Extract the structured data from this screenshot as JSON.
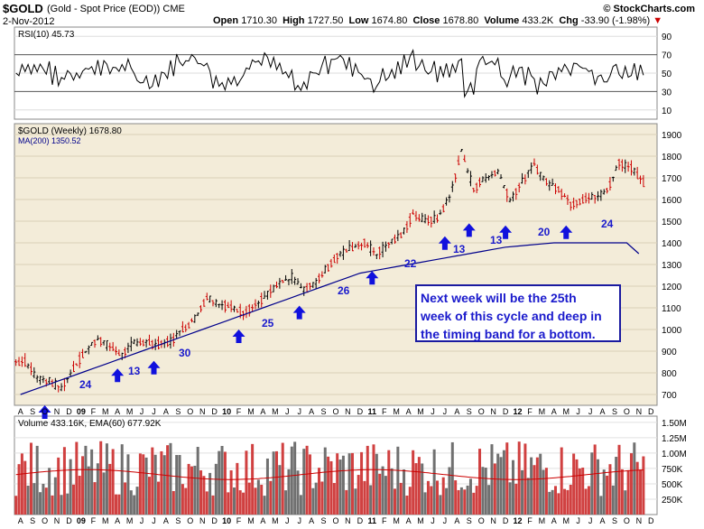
{
  "header": {
    "symbol": "$GOLD",
    "description": "(Gold - Spot Price (EOD))",
    "exchange": "CME",
    "date": "2-Nov-2012",
    "open_label": "Open",
    "open": "1710.30",
    "high_label": "High",
    "high": "1727.50",
    "low_label": "Low",
    "low": "1674.80",
    "close_label": "Close",
    "close": "1678.80",
    "volume_label": "Volume",
    "volume": "433.2K",
    "chg_label": "Chg",
    "chg": "-33.90 (-1.98%)",
    "watermark": "© StockCharts.com"
  },
  "rsi_panel": {
    "legend": "RSI(10) 45.73",
    "ticks": [
      "90",
      "70",
      "50",
      "30",
      "10"
    ]
  },
  "price_panel": {
    "legend_title": "$GOLD (Weekly) 1678.80",
    "legend_ma": "MA(200) 1350.52",
    "ticks": [
      "1900",
      "1800",
      "1700",
      "1600",
      "1500",
      "1400",
      "1300",
      "1200",
      "1100",
      "1000",
      "900",
      "800",
      "700"
    ]
  },
  "volume_panel": {
    "legend": "Volume 433.16K, EMA(60) 677.92K",
    "ticks": [
      "1.50M",
      "1.25M",
      "1.00M",
      "750K",
      "500K",
      "250K"
    ]
  },
  "x_axis": [
    "A",
    "S",
    "O",
    "N",
    "D",
    "09",
    "F",
    "M",
    "A",
    "M",
    "J",
    "J",
    "A",
    "S",
    "O",
    "N",
    "D",
    "10",
    "F",
    "M",
    "A",
    "M",
    "J",
    "J",
    "A",
    "S",
    "O",
    "N",
    "D",
    "11",
    "F",
    "M",
    "A",
    "M",
    "J",
    "J",
    "A",
    "S",
    "O",
    "N",
    "D",
    "12",
    "F",
    "M",
    "A",
    "M",
    "J",
    "J",
    "A",
    "S",
    "O",
    "N",
    "D"
  ],
  "cycle_labels": [
    "24",
    "13",
    "30",
    "25",
    "26",
    "22",
    "13",
    "13",
    "20",
    "24"
  ],
  "annotation": {
    "line1": "Next week will be the 25th",
    "line2": "week of this cycle and deep in",
    "line3": "the timing band for a bottom."
  },
  "colors": {
    "up_bar": "#000000",
    "down_bar": "#cc0000",
    "ma_line": "#00008b",
    "arrow": "#1010dd",
    "panel_bg": "#f3ecd9",
    "vol_up": "#707070",
    "vol_down": "#d04040",
    "rsi_fill": "#3a6b2a"
  },
  "chart_data": {
    "type": "line",
    "x": [
      "2008-08",
      "2008-09",
      "2008-10",
      "2008-11",
      "2008-12",
      "2009-01",
      "2009-02",
      "2009-03",
      "2009-04",
      "2009-05",
      "2009-06",
      "2009-07",
      "2009-08",
      "2009-09",
      "2009-10",
      "2009-11",
      "2009-12",
      "2010-01",
      "2010-02",
      "2010-03",
      "2010-04",
      "2010-05",
      "2010-06",
      "2010-07",
      "2010-08",
      "2010-09",
      "2010-10",
      "2010-11",
      "2010-12",
      "2011-01",
      "2011-02",
      "2011-03",
      "2011-04",
      "2011-05",
      "2011-06",
      "2011-07",
      "2011-08",
      "2011-09",
      "2011-10",
      "2011-11",
      "2011-12",
      "2012-01",
      "2012-02",
      "2012-03",
      "2012-04",
      "2012-05",
      "2012-06",
      "2012-07",
      "2012-08",
      "2012-09",
      "2012-10",
      "2012-11"
    ],
    "series": [
      {
        "values": [
          850,
          780,
          760,
          730,
          820,
          900,
          960,
          920,
          880,
          940,
          940,
          930,
          945,
          1000,
          1050,
          1150,
          1120,
          1100,
          1080,
          1110,
          1160,
          1210,
          1240,
          1180,
          1220,
          1290,
          1350,
          1380,
          1400,
          1350,
          1400,
          1430,
          1530,
          1500,
          1510,
          1610,
          1820,
          1650,
          1700,
          1730,
          1600,
          1680,
          1760,
          1680,
          1650,
          1580,
          1600,
          1610,
          1640,
          1770,
          1750,
          1679
        ]
      },
      {
        "values": [
          700,
          720,
          740,
          760,
          780,
          800,
          820,
          840,
          860,
          880,
          900,
          920,
          940,
          960,
          980,
          1000,
          1020,
          1040,
          1060,
          1080,
          1100,
          1120,
          1140,
          1160,
          1180,
          1200,
          1220,
          1240,
          1260,
          1270,
          1280,
          1290,
          1300,
          1310,
          1320,
          1330,
          1340,
          1350,
          1360,
          1370,
          1380,
          1385,
          1390,
          1395,
          1400,
          1400,
          1400,
          1400,
          1400,
          1400,
          1400,
          1350
        ]
      }
    ],
    "ylim": [
      650,
      1950
    ],
    "rsi_ylim": [
      0,
      100
    ],
    "volume_ylim": [
      0,
      1600000
    ],
    "cycle_lows": [
      {
        "x": "2008-10",
        "y": 700
      },
      {
        "x": "2009-04",
        "y": 870
      },
      {
        "x": "2009-07",
        "y": 905
      },
      {
        "x": "2010-02",
        "y": 1050
      },
      {
        "x": "2010-07",
        "y": 1160
      },
      {
        "x": "2011-01",
        "y": 1320
      },
      {
        "x": "2011-07",
        "y": 1480
      },
      {
        "x": "2011-09",
        "y": 1540
      },
      {
        "x": "2011-12",
        "y": 1530
      },
      {
        "x": "2012-05",
        "y": 1530
      }
    ]
  }
}
